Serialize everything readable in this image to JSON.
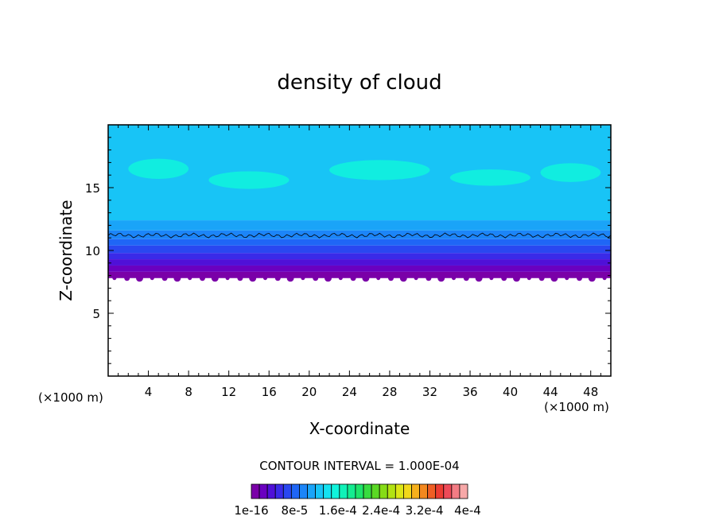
{
  "chart_data": {
    "type": "heatmap",
    "title": "density of cloud",
    "xlabel": "X-coordinate",
    "ylabel": "Z-coordinate",
    "x_unit": "(×1000 m)",
    "y_unit": "(×1000 m)",
    "xlim": [
      0,
      50
    ],
    "ylim": [
      0,
      20
    ],
    "xticks": [
      "4",
      "8",
      "12",
      "16",
      "20",
      "24",
      "28",
      "32",
      "36",
      "40",
      "44",
      "48"
    ],
    "yticks": [
      "5",
      "10",
      "15"
    ],
    "contour_interval_text": "CONTOUR INTERVAL = 1.000E-04",
    "colorbar": {
      "labels": [
        "1e-16",
        "8e-5",
        "1.6e-4",
        "2.4e-4",
        "3.2e-4",
        "4e-4"
      ],
      "colors": [
        "#7a00a8",
        "#6a00c0",
        "#4f10d8",
        "#3a2ae8",
        "#2a47f0",
        "#1f66f6",
        "#1c85f8",
        "#1aa4f8",
        "#18c4f6",
        "#14e2f0",
        "#10f4dc",
        "#10f2b8",
        "#14ec90",
        "#1ee46a",
        "#38dc40",
        "#5ad824",
        "#86dc16",
        "#b2e212",
        "#dce616",
        "#f2d81a",
        "#f6b01c",
        "#f4881e",
        "#ef5e24",
        "#ec3c32",
        "#ee4a58",
        "#f37c84",
        "#f7a8a8"
      ]
    },
    "field": {
      "cloud_base_z": 7.8,
      "layers": [
        {
          "z_top": 8.3,
          "color": "#7a00a8"
        },
        {
          "z_top": 8.8,
          "color": "#6a00c0"
        },
        {
          "z_top": 9.3,
          "color": "#4f10d8"
        },
        {
          "z_top": 9.8,
          "color": "#3a2ae8"
        },
        {
          "z_top": 10.4,
          "color": "#2a47f0"
        },
        {
          "z_top": 10.9,
          "color": "#1f66f6"
        },
        {
          "z_top": 11.6,
          "color": "#1c85f8"
        },
        {
          "z_top": 12.4,
          "color": "#1aa4f8"
        },
        {
          "z_top": 20.0,
          "color": "#18c4f6"
        }
      ],
      "contour_line_z": 11.2
    }
  }
}
